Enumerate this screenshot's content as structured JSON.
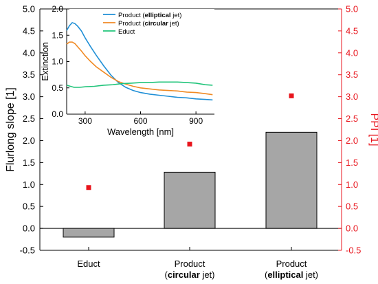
{
  "chart_data": [
    {
      "type": "bar",
      "categories": [
        {
          "line1": "Educt",
          "line2": null
        },
        {
          "line1": "Product",
          "line2": {
            "bold": "circular",
            "rest": " jet)",
            "prefix": "("
          }
        },
        {
          "line1": "Product",
          "line2": {
            "bold": "elliptical",
            "rest": " jet)",
            "prefix": "("
          }
        }
      ],
      "category_labels_plain": [
        "Educt",
        "Product (circular jet)",
        "Product (elliptical jet)"
      ],
      "series": [
        {
          "axis": "left",
          "mark": "bar",
          "values": [
            -0.2,
            1.28,
            2.19
          ]
        },
        {
          "axis": "right",
          "mark": "square",
          "values": [
            0.93,
            1.92,
            3.02
          ]
        }
      ],
      "ylabel": "Flurlong slope [1]",
      "ylabel_right": "PPI [1]",
      "ylim": [
        -0.5,
        5.0
      ],
      "ylim_right": [
        -0.5,
        5.0
      ],
      "yticks": [
        "-0.5",
        "0.0",
        "0.5",
        "1.0",
        "1.5",
        "2.0",
        "2.5",
        "3.0",
        "3.5",
        "4.0",
        "4.5",
        "5.0"
      ],
      "colors": {
        "bar_fill": "#a6a6a6",
        "bar_stroke": "#000000",
        "ppi": "#e8141c",
        "right_axis": "#e8141c"
      }
    },
    {
      "type": "line",
      "inset": true,
      "xlabel": "Wavelength [nm]",
      "ylabel": "Extinction",
      "xlim": [
        200,
        1000
      ],
      "ylim": [
        0.0,
        2.0
      ],
      "xticks": [
        "300",
        "600",
        "900"
      ],
      "yticks": [
        "0.0",
        "0.5",
        "1.0",
        "1.5",
        "2.0"
      ],
      "legend": [
        {
          "prefix": "Product (",
          "bold": "elliptical",
          "rest": " jet)",
          "color": "#1f8fd6"
        },
        {
          "prefix": "Product (",
          "bold": "circular",
          "rest": " jet)",
          "color": "#f08a24"
        },
        {
          "prefix": "Educt",
          "bold": "",
          "rest": "",
          "color": "#20c47a"
        }
      ],
      "series": [
        {
          "color": "#1f8fd6",
          "x": [
            200,
            215,
            230,
            245,
            260,
            280,
            300,
            330,
            360,
            400,
            440,
            480,
            520,
            560,
            600,
            650,
            700,
            750,
            800,
            850,
            900,
            950,
            990
          ],
          "y": [
            1.59,
            1.68,
            1.74,
            1.72,
            1.67,
            1.58,
            1.45,
            1.28,
            1.12,
            0.92,
            0.74,
            0.6,
            0.51,
            0.45,
            0.41,
            0.38,
            0.36,
            0.34,
            0.32,
            0.31,
            0.29,
            0.28,
            0.27
          ]
        },
        {
          "color": "#f08a24",
          "x": [
            200,
            215,
            230,
            245,
            260,
            280,
            300,
            330,
            360,
            400,
            440,
            480,
            520,
            560,
            600,
            650,
            700,
            750,
            800,
            850,
            900,
            950,
            990
          ],
          "y": [
            1.33,
            1.37,
            1.37,
            1.34,
            1.28,
            1.2,
            1.11,
            1.0,
            0.9,
            0.8,
            0.7,
            0.62,
            0.57,
            0.53,
            0.5,
            0.48,
            0.46,
            0.45,
            0.44,
            0.42,
            0.41,
            0.39,
            0.37
          ]
        },
        {
          "color": "#20c47a",
          "x": [
            200,
            220,
            240,
            270,
            300,
            350,
            400,
            450,
            500,
            550,
            600,
            650,
            700,
            750,
            800,
            850,
            900,
            950,
            990
          ],
          "y": [
            0.55,
            0.53,
            0.51,
            0.51,
            0.52,
            0.53,
            0.55,
            0.56,
            0.58,
            0.59,
            0.6,
            0.6,
            0.61,
            0.61,
            0.61,
            0.6,
            0.59,
            0.56,
            0.55
          ]
        }
      ]
    }
  ]
}
